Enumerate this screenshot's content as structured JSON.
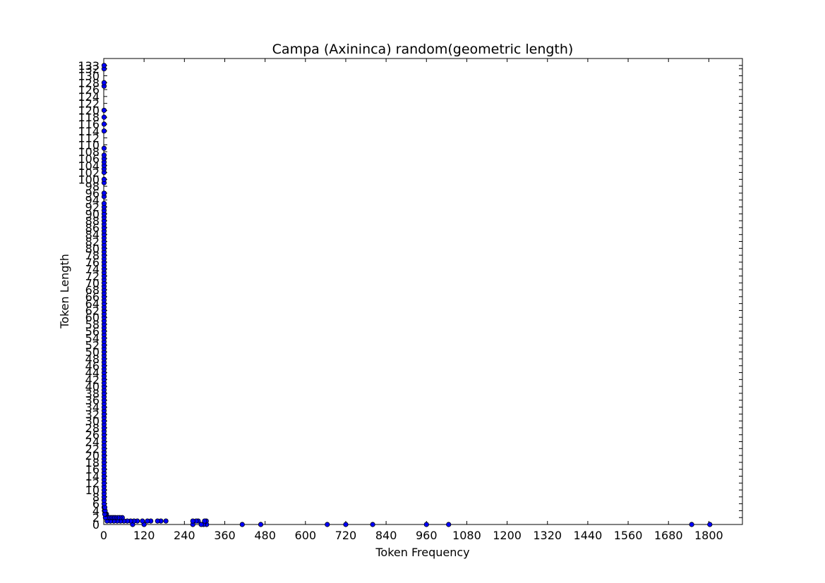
{
  "chart_data": {
    "type": "scatter",
    "title": "Campa (Axininca) random(geometric length)",
    "xlabel": "Token Frequency",
    "ylabel": "Token Length",
    "xlim": [
      0,
      1900
    ],
    "ylim": [
      0,
      135
    ],
    "xticks": [
      0,
      120,
      240,
      360,
      480,
      600,
      720,
      840,
      960,
      1080,
      1200,
      1320,
      1440,
      1560,
      1680,
      1800
    ],
    "yticks_major_step": 2,
    "yticks_max": 133,
    "grid": false,
    "marker_color": "#0000ff",
    "points": [
      [
        1803,
        0
      ],
      [
        1749,
        0
      ],
      [
        1026,
        0
      ],
      [
        960,
        0
      ],
      [
        800,
        0
      ],
      [
        720,
        0
      ],
      [
        665,
        0
      ],
      [
        467,
        0
      ],
      [
        412,
        0
      ],
      [
        306,
        0
      ],
      [
        297,
        0
      ],
      [
        290,
        0
      ],
      [
        265,
        0
      ],
      [
        120,
        0
      ],
      [
        86,
        0
      ],
      [
        305,
        1
      ],
      [
        300,
        1
      ],
      [
        281,
        1
      ],
      [
        275,
        1
      ],
      [
        265,
        1
      ],
      [
        185,
        1
      ],
      [
        170,
        1
      ],
      [
        160,
        1
      ],
      [
        140,
        1
      ],
      [
        130,
        1
      ],
      [
        115,
        1
      ],
      [
        100,
        1
      ],
      [
        90,
        1
      ],
      [
        80,
        1
      ],
      [
        70,
        1
      ],
      [
        60,
        1
      ],
      [
        50,
        1
      ],
      [
        40,
        1
      ],
      [
        30,
        1
      ],
      [
        20,
        1
      ],
      [
        10,
        1
      ],
      [
        55,
        2
      ],
      [
        48,
        2
      ],
      [
        42,
        2
      ],
      [
        35,
        2
      ],
      [
        30,
        2
      ],
      [
        25,
        2
      ],
      [
        20,
        2
      ],
      [
        15,
        2
      ],
      [
        10,
        2
      ],
      [
        5,
        2
      ],
      [
        8,
        3
      ],
      [
        5,
        3
      ],
      [
        3,
        3
      ],
      [
        2,
        4
      ],
      [
        4,
        4
      ],
      [
        1,
        5
      ],
      [
        3,
        5
      ],
      [
        1,
        6
      ],
      [
        1,
        7
      ],
      [
        1,
        8
      ],
      [
        1,
        9
      ],
      [
        1,
        10
      ],
      [
        1,
        11
      ],
      [
        1,
        12
      ],
      [
        1,
        13
      ],
      [
        1,
        14
      ],
      [
        1,
        15
      ],
      [
        1,
        16
      ],
      [
        1,
        17
      ],
      [
        1,
        18
      ],
      [
        1,
        19
      ],
      [
        1,
        20
      ],
      [
        1,
        21
      ],
      [
        1,
        22
      ],
      [
        1,
        23
      ],
      [
        1,
        24
      ],
      [
        1,
        25
      ],
      [
        1,
        26
      ],
      [
        1,
        27
      ],
      [
        1,
        28
      ],
      [
        1,
        29
      ],
      [
        1,
        30
      ],
      [
        1,
        31
      ],
      [
        1,
        32
      ],
      [
        1,
        33
      ],
      [
        1,
        34
      ],
      [
        1,
        35
      ],
      [
        1,
        36
      ],
      [
        1,
        37
      ],
      [
        1,
        38
      ],
      [
        1,
        39
      ],
      [
        1,
        40
      ],
      [
        1,
        41
      ],
      [
        1,
        42
      ],
      [
        1,
        43
      ],
      [
        1,
        44
      ],
      [
        1,
        45
      ],
      [
        1,
        46
      ],
      [
        1,
        47
      ],
      [
        1,
        48
      ],
      [
        1,
        49
      ],
      [
        1,
        50
      ],
      [
        1,
        51
      ],
      [
        1,
        52
      ],
      [
        1,
        53
      ],
      [
        1,
        54
      ],
      [
        1,
        55
      ],
      [
        1,
        56
      ],
      [
        1,
        57
      ],
      [
        1,
        58
      ],
      [
        1,
        59
      ],
      [
        1,
        60
      ],
      [
        1,
        61
      ],
      [
        1,
        62
      ],
      [
        1,
        63
      ],
      [
        1,
        64
      ],
      [
        1,
        65
      ],
      [
        1,
        66
      ],
      [
        1,
        67
      ],
      [
        1,
        68
      ],
      [
        1,
        69
      ],
      [
        1,
        70
      ],
      [
        1,
        71
      ],
      [
        1,
        72
      ],
      [
        1,
        73
      ],
      [
        1,
        74
      ],
      [
        1,
        75
      ],
      [
        1,
        76
      ],
      [
        1,
        77
      ],
      [
        1,
        78
      ],
      [
        1,
        79
      ],
      [
        1,
        80
      ],
      [
        1,
        81
      ],
      [
        1,
        82
      ],
      [
        1,
        83
      ],
      [
        1,
        84
      ],
      [
        1,
        85
      ],
      [
        1,
        86
      ],
      [
        1,
        87
      ],
      [
        1,
        88
      ],
      [
        1,
        89
      ],
      [
        1,
        90
      ],
      [
        1,
        91
      ],
      [
        1,
        92
      ],
      [
        1,
        93
      ],
      [
        1,
        95
      ],
      [
        1,
        96
      ],
      [
        1,
        99
      ],
      [
        1,
        100
      ],
      [
        1,
        102
      ],
      [
        1,
        103
      ],
      [
        1,
        104
      ],
      [
        1,
        105
      ],
      [
        1,
        106
      ],
      [
        1,
        107
      ],
      [
        1,
        109
      ],
      [
        1,
        114
      ],
      [
        1,
        116
      ],
      [
        1,
        118
      ],
      [
        1,
        120
      ],
      [
        1,
        127
      ],
      [
        1,
        128
      ],
      [
        1,
        132
      ],
      [
        1,
        133
      ]
    ]
  }
}
